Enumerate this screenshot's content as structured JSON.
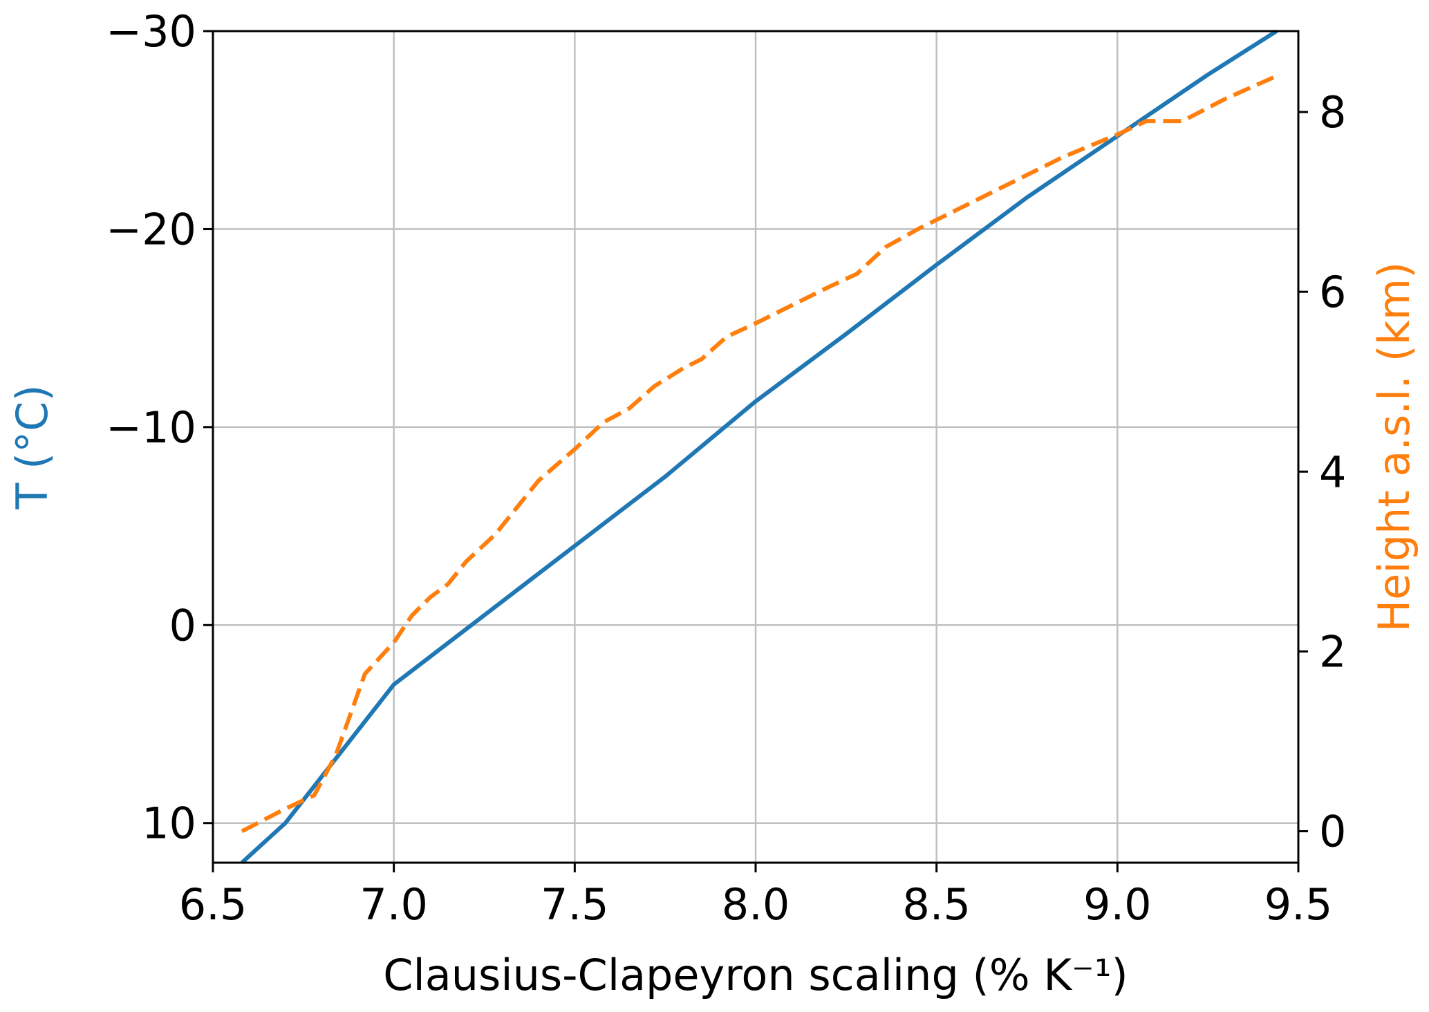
{
  "chart_data": {
    "type": "line",
    "xlabel": "Clausius-Clapeyron scaling (% K⁻¹)",
    "ylabel_left": "T (°C)",
    "ylabel_right": "Height a.s.l. (km)",
    "xlim": [
      6.5,
      9.5
    ],
    "ylim_left": [
      12,
      -30
    ],
    "ylim_right": [
      -0.35,
      8.9
    ],
    "left_axis_inverted": true,
    "grid": true,
    "x_ticks": [
      6.5,
      7.0,
      7.5,
      8.0,
      8.5,
      9.0,
      9.5
    ],
    "x_tick_labels": [
      "6.5",
      "7.0",
      "7.5",
      "8.0",
      "8.5",
      "9.0",
      "9.5"
    ],
    "y_left_ticks": [
      -30,
      -20,
      -10,
      0,
      10
    ],
    "y_left_tick_labels": [
      "−30",
      "−20",
      "−10",
      "0",
      "10"
    ],
    "y_right_ticks": [
      0,
      2,
      4,
      6,
      8
    ],
    "y_right_tick_labels": [
      "0",
      "2",
      "4",
      "6",
      "8"
    ],
    "colors": {
      "temperature": "#1f77b4",
      "height": "#ff7f0e",
      "grid": "#c0c0c0",
      "axes": "#000000"
    },
    "series": [
      {
        "axis": "left",
        "style": "solid",
        "x": [
          6.58,
          6.7,
          6.85,
          7.0,
          7.25,
          7.5,
          7.75,
          8.0,
          8.25,
          8.5,
          8.75,
          9.0,
          9.25,
          9.44
        ],
        "y": [
          12,
          10.0,
          6.5,
          3.0,
          -0.5,
          -4.0,
          -7.5,
          -11.3,
          -14.7,
          -18.2,
          -21.6,
          -24.7,
          -27.8,
          -30
        ]
      },
      {
        "axis": "right",
        "style": "dashed",
        "x": [
          6.58,
          6.7,
          6.78,
          6.84,
          6.92,
          7.0,
          7.05,
          7.1,
          7.15,
          7.2,
          7.28,
          7.35,
          7.4,
          7.5,
          7.58,
          7.65,
          7.72,
          7.8,
          7.85,
          7.92,
          8.0,
          8.1,
          8.2,
          8.28,
          8.36,
          8.45,
          8.55,
          8.65,
          8.75,
          8.85,
          9.0,
          9.08,
          9.18,
          9.3,
          9.44
        ],
        "y": [
          0.0,
          0.25,
          0.4,
          0.85,
          1.75,
          2.1,
          2.4,
          2.6,
          2.75,
          3.0,
          3.3,
          3.65,
          3.9,
          4.25,
          4.55,
          4.7,
          4.95,
          5.15,
          5.25,
          5.5,
          5.65,
          5.85,
          6.05,
          6.2,
          6.5,
          6.7,
          6.9,
          7.1,
          7.3,
          7.5,
          7.75,
          7.9,
          7.9,
          8.15,
          8.4
        ]
      }
    ]
  }
}
